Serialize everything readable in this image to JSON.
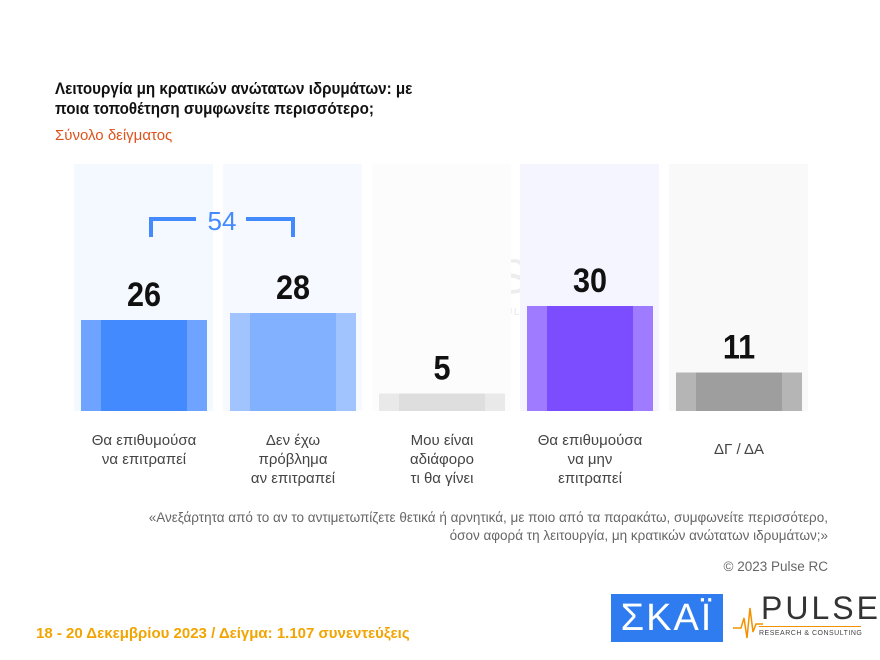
{
  "chart_data": {
    "type": "bar",
    "title": "Λειτουργία μη κρατικών ανώτατων ιδρυμάτων: με ποια τοποθέτηση συμφωνείτε περισσότερο;",
    "subtitle": "Σύνολο δείγματος",
    "categories": [
      [
        "Θα επιθυμούσα",
        "να επιτραπεί"
      ],
      [
        "Δεν έχω",
        "πρόβλημα",
        "αν επιτραπεί"
      ],
      [
        "Μου είναι",
        "αδιάφορο",
        "τι θα γίνει"
      ],
      [
        "Θα επιθυμούσα",
        "να μην",
        "επιτραπεί"
      ],
      [
        "ΔΓ / ΔΑ"
      ]
    ],
    "values": [
      26,
      28,
      5,
      30,
      11
    ],
    "colors": [
      "#448aff",
      "#82b1ff",
      "#dedede",
      "#7c4dff",
      "#9e9e9e"
    ],
    "side_colors": [
      "#6ea4ff",
      "#a1c4ff",
      "#e9e9e9",
      "#9e7bff",
      "#b5b5b5"
    ],
    "bg_colors": [
      "#f4f8ff",
      "#f6f9ff",
      "#fcfcfc",
      "#f5f5ff",
      "#f9f9f9"
    ],
    "bracket_label": "54",
    "ylim": [
      0,
      70
    ]
  },
  "note": "«Ανεξάρτητα από το αν το αντιμετωπίζετε θετικά ή αρνητικά, με ποιο από τα παρακάτω, συμφωνείτε περισσότερο, όσον αφορά τη λειτουργία, μη κρατικών ανώτατων ιδρυμάτων;»",
  "copyright": "© 2023 Pulse RC",
  "footer": "18 - 20  Δεκεμβρίου  2023  /  Δείγμα:  1.107 συνεντεύξεις",
  "logos": {
    "skai": "ΣΚΑΪ",
    "pulse": "PULSE",
    "pulse_sub": "RESEARCH & CONSULTING",
    "watermark": "PULSE",
    "watermark_sub": "RESEARCH & CONSULTING"
  }
}
